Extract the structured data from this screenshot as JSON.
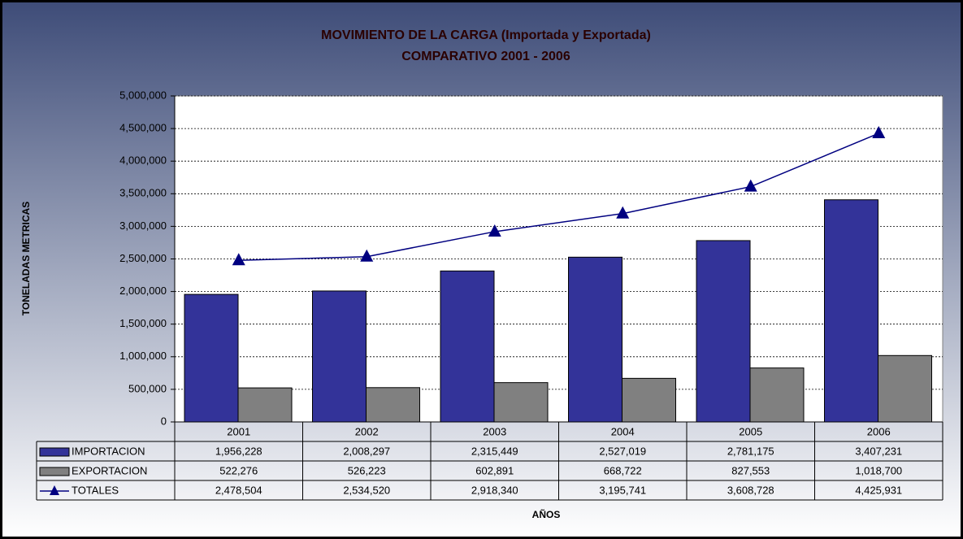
{
  "chart_data": {
    "type": "bar",
    "title": "MOVIMIENTO DE LA CARGA (Importada y Exportada)",
    "subtitle": "COMPARATIVO  2001 - 2006",
    "y_label": "TONELADAS METRICAS",
    "x_label": "AÑOS",
    "categories": [
      "2001",
      "2002",
      "2003",
      "2004",
      "2005",
      "2006"
    ],
    "series": [
      {
        "name": "IMPORTACION",
        "type": "bar",
        "color": "#333399",
        "values": [
          1956228,
          2008297,
          2315449,
          2527019,
          2781175,
          3407231
        ],
        "value_labels": [
          "1,956,228",
          "2,008,297",
          "2,315,449",
          "2,527,019",
          "2,781,175",
          "3,407,231"
        ]
      },
      {
        "name": "EXPORTACION",
        "type": "bar",
        "color": "#808080",
        "values": [
          522276,
          526223,
          602891,
          668722,
          827553,
          1018700
        ],
        "value_labels": [
          "522,276",
          "526,223",
          "602,891",
          "668,722",
          "827,553",
          "1,018,700"
        ]
      },
      {
        "name": "TOTALES",
        "type": "line",
        "color": "#000080",
        "values": [
          2478504,
          2534520,
          2918340,
          3195741,
          3608728,
          4425931
        ],
        "value_labels": [
          "2,478,504",
          "2,534,520",
          "2,918,340",
          "3,195,741",
          "3,608,728",
          "4,425,931"
        ]
      }
    ],
    "ylim": [
      0,
      5000000
    ],
    "yticks": [
      0,
      {
        "value": 500000,
        "label": "500,000"
      },
      {
        "value": 1000000,
        "label": "1,000,000"
      },
      {
        "value": 1500000,
        "label": "1,500,000"
      },
      {
        "value": 2000000,
        "label": "2,000,000"
      },
      {
        "value": 2500000,
        "label": "2,500,000"
      },
      {
        "value": 3000000,
        "label": "3,000,000"
      },
      {
        "value": 3500000,
        "label": "3,500,000"
      },
      {
        "value": 4000000,
        "label": "4,000,000"
      },
      {
        "value": 4500000,
        "label": "4,500,000"
      },
      {
        "value": 5000000,
        "label": "5,000,000"
      }
    ],
    "grid": true
  }
}
